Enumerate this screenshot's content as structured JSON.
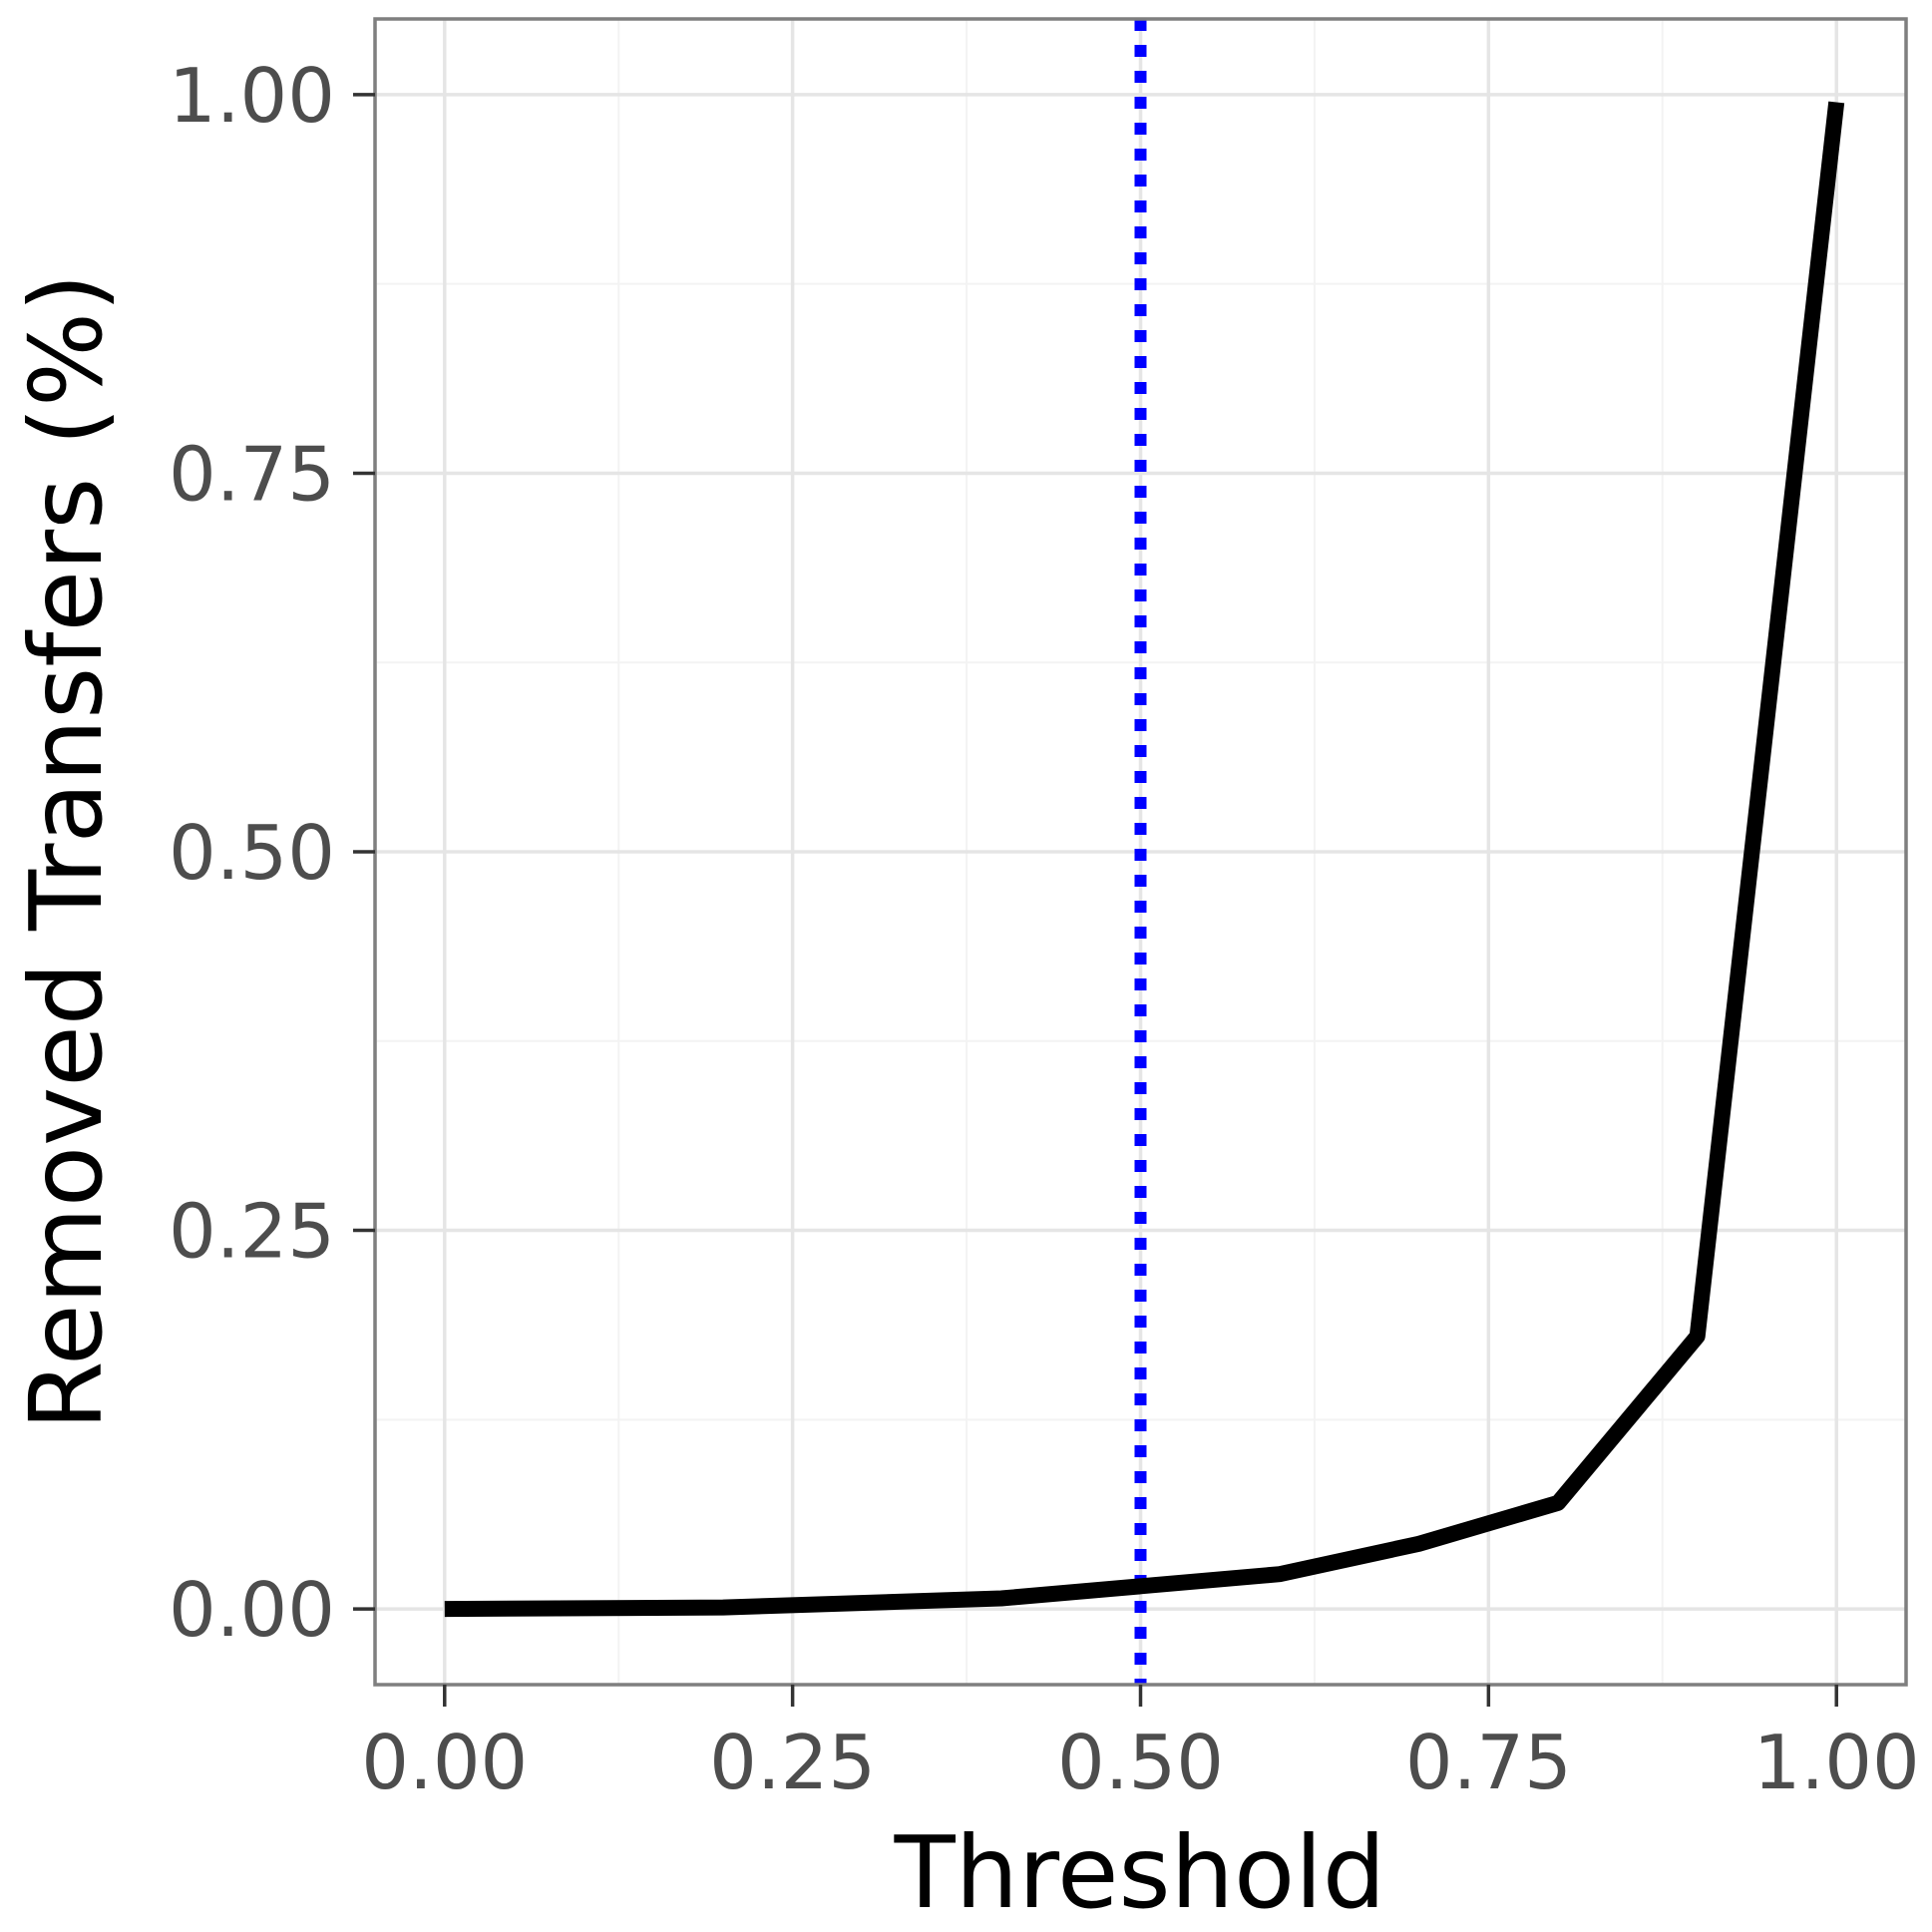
{
  "chart_data": {
    "type": "line",
    "title": "",
    "xlabel": "Threshold",
    "ylabel": "Removed Transfers (%)",
    "xlim": [
      -0.05,
      1.05
    ],
    "ylim": [
      -0.05,
      1.05
    ],
    "x_ticks": [
      0.0,
      0.25,
      0.5,
      0.75,
      1.0
    ],
    "x_tick_labels": [
      "0.00",
      "0.25",
      "0.50",
      "0.75",
      "1.00"
    ],
    "y_ticks": [
      0.0,
      0.25,
      0.5,
      0.75,
      1.0
    ],
    "y_tick_labels": [
      "0.00",
      "0.25",
      "0.50",
      "0.75",
      "1.00"
    ],
    "grid": true,
    "series": [
      {
        "color": "#000000",
        "x": [
          0.0,
          0.2,
          0.4,
          0.6,
          0.7,
          0.8,
          0.9,
          1.0
        ],
        "y": [
          0.0,
          0.001,
          0.007,
          0.023,
          0.043,
          0.07,
          0.18,
          0.995
        ]
      }
    ],
    "vline": {
      "x": 0.5,
      "color": "#0000ff",
      "style": "dotted"
    }
  }
}
